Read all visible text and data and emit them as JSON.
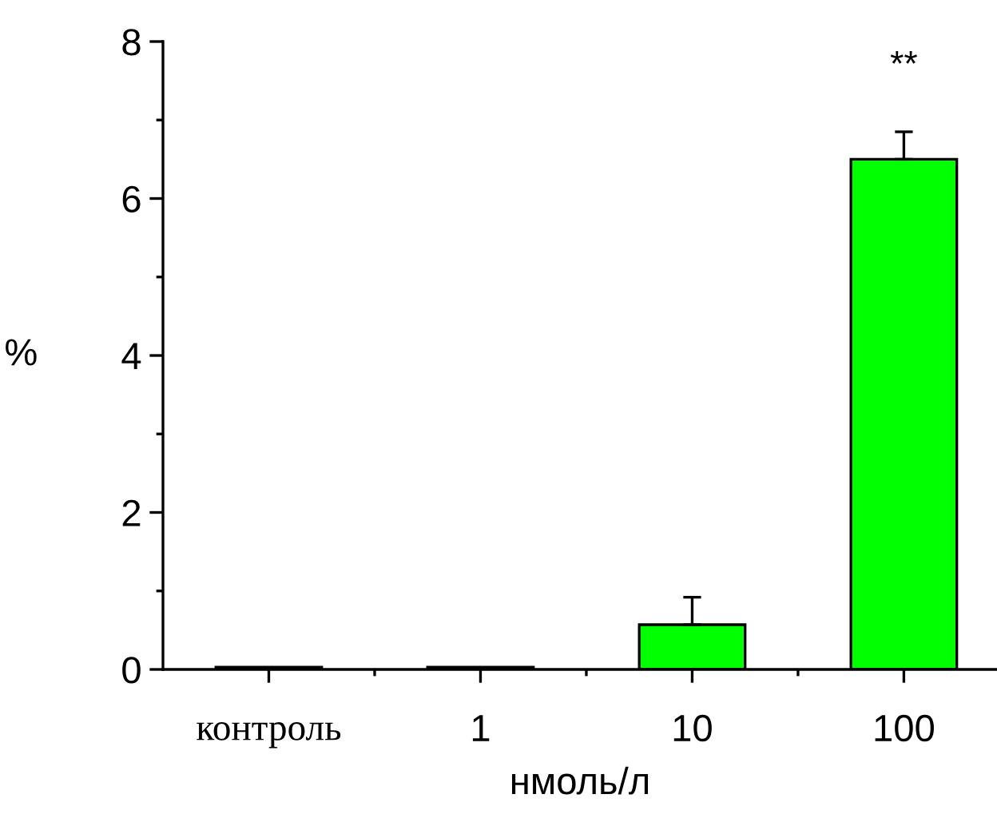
{
  "chart_data": {
    "type": "bar",
    "xlabel": "нмоль/л",
    "ylabel": "%",
    "categories": [
      "контроль",
      "1",
      "10",
      "100"
    ],
    "values": [
      0.03,
      0.03,
      0.57,
      6.5
    ],
    "errors": [
      null,
      null,
      0.35,
      0.35
    ],
    "color": "#00ff00",
    "ylim": [
      0,
      8
    ],
    "yticks": [
      0,
      2,
      4,
      6,
      8
    ],
    "grid": false,
    "legend": false,
    "annotations": [
      "**"
    ]
  }
}
